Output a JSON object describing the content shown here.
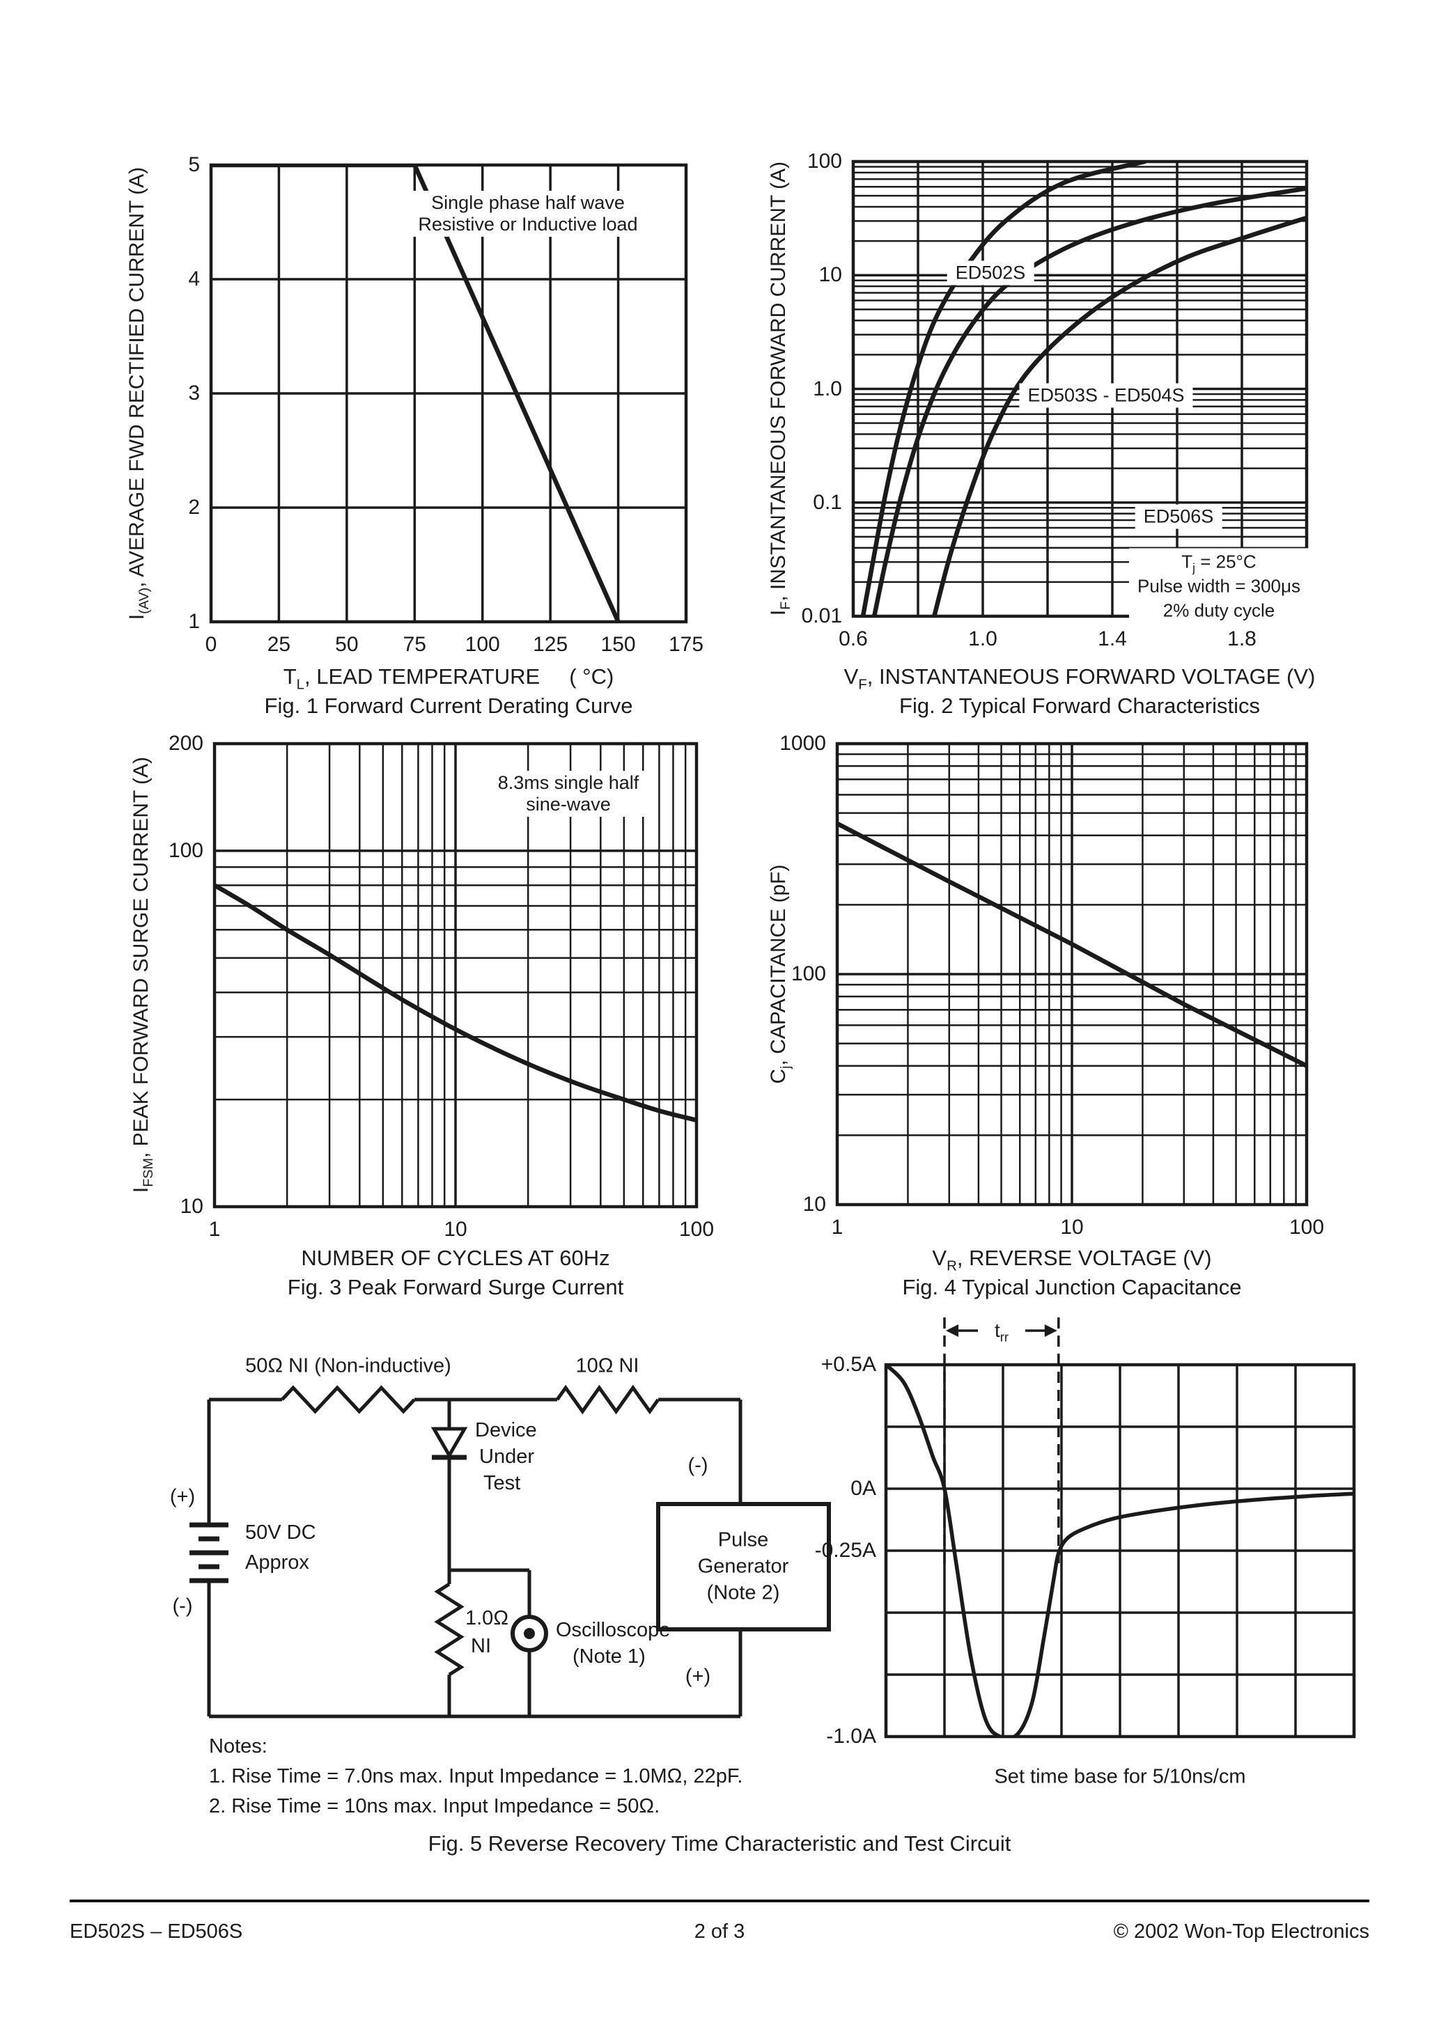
{
  "chart_data": {
    "fig1": {
      "type": "line",
      "caption": "Fig. 1  Forward Current Derating Curve",
      "xlabel": {
        "pre": "T",
        "sub": "L",
        "rest": ", LEAD TEMPERATURE",
        "unit": "( °C)"
      },
      "ylabel": {
        "pre": "I",
        "sub": "(AV)",
        "rest": ", AVERAGE FWD RECTIFIED CURRENT (A)"
      },
      "annotation": [
        "Single phase half wave",
        "Resistive or Inductive load"
      ],
      "xscale": "linear",
      "yscale": "linear",
      "xlim": [
        0,
        175
      ],
      "ylim": [
        1,
        5
      ],
      "xgrid": 25,
      "ygrid": 1,
      "xticks": [
        "0",
        "25",
        "50",
        "75",
        "100",
        "125",
        "150",
        "175"
      ],
      "yticks": [
        "5",
        "4",
        "3",
        "2",
        "1"
      ],
      "series": [
        {
          "name": "derating_curve",
          "smooth": false,
          "points": [
            [
              0,
              5
            ],
            [
              75,
              5
            ],
            [
              150,
              1
            ]
          ]
        }
      ]
    },
    "fig2": {
      "type": "line",
      "caption": "Fig. 2  Typical Forward Characteristics",
      "xlabel": {
        "pre": "V",
        "sub": "F",
        "rest": ", INSTANTANEOUS FORWARD VOLTAGE (V)"
      },
      "ylabel": {
        "pre": "I",
        "sub": "F",
        "rest": ", INSTANTANEOUS FORWARD CURRENT (A)"
      },
      "conditions": [
        {
          "pre": "T",
          "sub": "j",
          "rest": " = 25°C"
        },
        {
          "rest": "Pulse width = 300μs"
        },
        {
          "rest": "2% duty cycle"
        }
      ],
      "xscale": "linear",
      "yscale": "log",
      "xlim": [
        0.6,
        2.0
      ],
      "ylim": [
        0.01,
        100
      ],
      "xgrid": 0.2,
      "xticks": [
        "0.6",
        "1.0",
        "1.4",
        "1.8"
      ],
      "yticks": [
        "100",
        "10",
        "1.0",
        "0.1",
        "0.01"
      ],
      "series": [
        {
          "name": "ED502S",
          "label": "ED502S",
          "smooth": true,
          "points": [
            [
              0.63,
              0.01
            ],
            [
              0.665,
              0.035
            ],
            [
              0.7,
              0.12
            ],
            [
              0.745,
              0.45
            ],
            [
              0.8,
              1.6
            ],
            [
              0.86,
              4.5
            ],
            [
              0.95,
              12
            ],
            [
              1.07,
              30
            ],
            [
              1.25,
              65
            ],
            [
              1.5,
              100
            ]
          ]
        },
        {
          "name": "ED503S-ED504S",
          "label": "ED503S - ED504S",
          "smooth": true,
          "points": [
            [
              0.665,
              0.01
            ],
            [
              0.7,
              0.03
            ],
            [
              0.75,
              0.12
            ],
            [
              0.81,
              0.45
            ],
            [
              0.88,
              1.4
            ],
            [
              0.97,
              3.8
            ],
            [
              1.08,
              8.5
            ],
            [
              1.25,
              17
            ],
            [
              1.45,
              28
            ],
            [
              1.7,
              42
            ],
            [
              2.0,
              58
            ]
          ]
        },
        {
          "name": "ED506S",
          "label": "ED506S",
          "smooth": true,
          "points": [
            [
              0.85,
              0.01
            ],
            [
              0.9,
              0.035
            ],
            [
              0.96,
              0.12
            ],
            [
              1.03,
              0.4
            ],
            [
              1.12,
              1.2
            ],
            [
              1.25,
              3
            ],
            [
              1.42,
              7
            ],
            [
              1.62,
              14
            ],
            [
              1.82,
              22
            ],
            [
              2.0,
              32
            ]
          ]
        }
      ]
    },
    "fig3": {
      "type": "line",
      "caption": "Fig. 3  Peak Forward Surge Current",
      "xlabel": {
        "rest": "NUMBER OF CYCLES AT 60Hz"
      },
      "ylabel": {
        "pre": "I",
        "sub": "FSM",
        "rest": ", PEAK FORWARD SURGE CURRENT (A)"
      },
      "annotation": [
        "8.3ms single half",
        "sine-wave"
      ],
      "xscale": "log",
      "yscale": "log",
      "xlim": [
        1,
        100
      ],
      "ylim": [
        10,
        200
      ],
      "xticks": [
        "1",
        "10",
        "100"
      ],
      "yticks": [
        "200",
        "100",
        "10"
      ],
      "series": [
        {
          "name": "surge_current",
          "smooth": true,
          "points": [
            [
              1,
              80
            ],
            [
              1.4,
              70
            ],
            [
              2,
              60
            ],
            [
              3,
              51
            ],
            [
              4.5,
              43
            ],
            [
              6.5,
              37
            ],
            [
              10,
              31.5
            ],
            [
              15,
              27.5
            ],
            [
              22,
              24.5
            ],
            [
              33,
              22
            ],
            [
              50,
              20
            ],
            [
              70,
              18.6
            ],
            [
              100,
              17.5
            ]
          ]
        }
      ]
    },
    "fig4": {
      "type": "line",
      "caption": "Fig. 4  Typical Junction Capacitance",
      "xlabel": {
        "pre": "V",
        "sub": "R",
        "rest": ", REVERSE VOLTAGE (V)"
      },
      "ylabel": {
        "pre": "C",
        "sub": "j",
        "rest": ", CAPACITANCE (pF)"
      },
      "xscale": "log",
      "yscale": "log",
      "xlim": [
        1,
        100
      ],
      "ylim": [
        10,
        1000
      ],
      "xticks": [
        "1",
        "10",
        "100"
      ],
      "yticks": [
        "1000",
        "100",
        "10"
      ],
      "series": [
        {
          "name": "junction_capacitance",
          "smooth": false,
          "points": [
            [
              1,
              450
            ],
            [
              3,
              252
            ],
            [
              10,
              135
            ],
            [
              30,
              74
            ],
            [
              100,
              40
            ]
          ]
        }
      ]
    },
    "fig5": {
      "caption": "Fig. 5  Reverse Recovery Time Characteristic and Test Circuit",
      "circuit": {
        "r1_label": "50Ω NI (Non-inductive)",
        "r2_label": "10Ω NI",
        "r3_label": [
          "1.0Ω",
          "NI"
        ],
        "battery_label": [
          "50V DC",
          "Approx"
        ],
        "battery_plus": "(+)",
        "battery_minus": "(-)",
        "dut_label": [
          "Device",
          "Under",
          "Test"
        ],
        "oscilloscope_label": [
          "Oscilloscope",
          "(Note 1)"
        ],
        "pulse_generator_label": [
          "Pulse",
          "Generator",
          "(Note 2)"
        ],
        "generator_minus": "(-)",
        "generator_plus": "(+)"
      },
      "waveform": {
        "type": "line",
        "ylabels": [
          "+0.5A",
          "0A",
          "-0.25A",
          "-1.0A"
        ],
        "trr": {
          "pre": "t",
          "sub": "rr"
        },
        "caption": "Set time base for 5/10ns/cm",
        "ylim": [
          -1.0,
          0.5
        ],
        "grid_cols": 8,
        "grid_rows": 6,
        "dashed_cols": [
          1.0,
          2.95
        ],
        "points": [
          [
            0,
            0.5
          ],
          [
            0.3,
            0.43
          ],
          [
            0.55,
            0.3
          ],
          [
            0.8,
            0.13
          ],
          [
            1.0,
            0
          ],
          [
            1.2,
            -0.3
          ],
          [
            1.45,
            -0.68
          ],
          [
            1.7,
            -0.93
          ],
          [
            1.95,
            -1.0
          ],
          [
            2.25,
            -0.99
          ],
          [
            2.5,
            -0.86
          ],
          [
            2.7,
            -0.6
          ],
          [
            2.87,
            -0.36
          ],
          [
            2.95,
            -0.26
          ],
          [
            3.1,
            -0.2
          ],
          [
            3.4,
            -0.16
          ],
          [
            3.9,
            -0.12
          ],
          [
            4.6,
            -0.09
          ],
          [
            5.4,
            -0.065
          ],
          [
            6.3,
            -0.045
          ],
          [
            7.2,
            -0.03
          ],
          [
            8,
            -0.02
          ]
        ]
      },
      "notes": [
        "Notes:",
        "1. Rise Time = 7.0ns max. Input Impedance = 1.0MΩ, 22pF.",
        "2. Rise Time = 10ns max. Input Impedance = 50Ω."
      ]
    }
  },
  "footer": {
    "left": "ED502S – ED506S",
    "center": "2 of 3",
    "right": "© 2002 Won-Top Electronics"
  }
}
